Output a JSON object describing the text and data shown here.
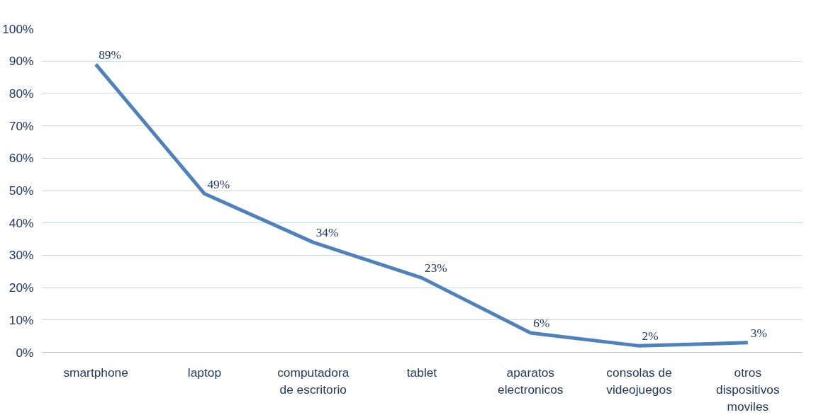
{
  "chart_data": {
    "type": "line",
    "categories": [
      "smartphone",
      "laptop",
      "computadora de escritorio",
      "tablet",
      "aparatos electronicos",
      "consolas de videojuegos",
      "otros dispositivos moviles"
    ],
    "values": [
      89,
      49,
      34,
      23,
      6,
      2,
      3
    ],
    "value_labels": [
      "89%",
      "49%",
      "34%",
      "23%",
      "6%",
      "2%",
      "3%"
    ],
    "color": "#4f81bd",
    "ylim": [
      0,
      100
    ],
    "yticks": [
      {
        "value": 0,
        "label": "0%"
      },
      {
        "value": 10,
        "label": "10%"
      },
      {
        "value": 20,
        "label": "20%"
      },
      {
        "value": 30,
        "label": "30%"
      },
      {
        "value": 40,
        "label": "40%"
      },
      {
        "value": 50,
        "label": "50%"
      },
      {
        "value": 60,
        "label": "60%"
      },
      {
        "value": 70,
        "label": "70%"
      },
      {
        "value": 80,
        "label": "80%"
      },
      {
        "value": 90,
        "label": "90%"
      },
      {
        "value": 100,
        "label": "100%"
      }
    ],
    "grid": "y",
    "marker": "none",
    "line_style": "solid"
  }
}
